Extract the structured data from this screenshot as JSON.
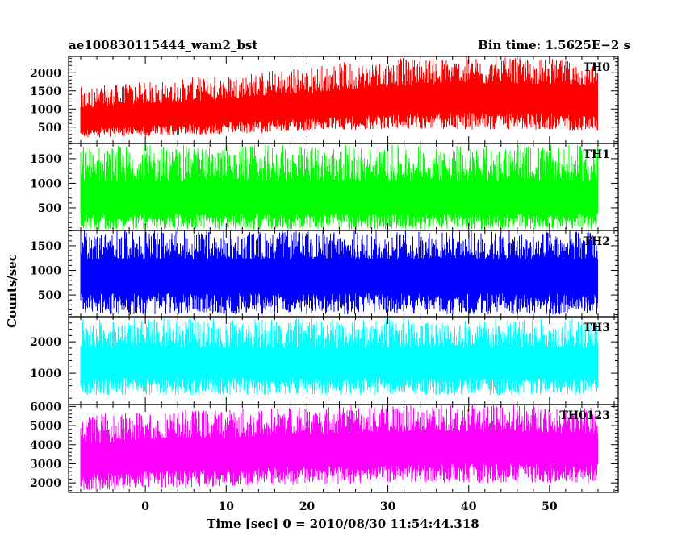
{
  "header": {
    "left_title": "ae100830115444_wam2_bst",
    "right_title": "Bin time: 1.5625E−2 s"
  },
  "chart_data": {
    "type": "line",
    "xlabel": "Time [sec] 0 = 2010/08/30 11:54:44.318",
    "ylabel": "Counts/sec",
    "xlim": [
      -9.5,
      58.5
    ],
    "x_ticks": [
      0,
      10,
      20,
      30,
      40,
      50
    ],
    "x_start": -8.0,
    "x_end": 56.0,
    "grid": false,
    "panels": [
      {
        "name": "TH0",
        "color": "#ff0000",
        "ylim": [
          50,
          2450
        ],
        "y_ticks": [
          500,
          1000,
          1500,
          2000
        ],
        "envelope": {
          "x": [
            -8,
            0,
            10,
            20,
            30,
            40,
            50,
            56
          ],
          "lower": [
            200,
            250,
            300,
            400,
            450,
            430,
            420,
            400
          ],
          "mean": [
            700,
            800,
            900,
            1000,
            1200,
            1300,
            1300,
            1250
          ],
          "upper": [
            1600,
            1750,
            1950,
            2200,
            2400,
            2450,
            2400,
            2300
          ]
        }
      },
      {
        "name": "TH1",
        "color": "#00ff00",
        "ylim": [
          40,
          1810
        ],
        "y_ticks": [
          500,
          1000,
          1500
        ],
        "envelope": {
          "x": [
            -8,
            56
          ],
          "lower": [
            60,
            60
          ],
          "mean": [
            650,
            650
          ],
          "upper": [
            1780,
            1780
          ]
        }
      },
      {
        "name": "TH2",
        "color": "#0000ff",
        "ylim": [
          60,
          1810
        ],
        "y_ticks": [
          500,
          1000,
          1500
        ],
        "envelope": {
          "x": [
            -8,
            56
          ],
          "lower": [
            100,
            100
          ],
          "mean": [
            900,
            900
          ],
          "upper": [
            1810,
            1810
          ]
        }
      },
      {
        "name": "TH3",
        "color": "#00ffff",
        "ylim": [
          0,
          2800
        ],
        "y_ticks": [
          1000,
          2000
        ],
        "envelope": {
          "x": [
            -8,
            56
          ],
          "lower": [
            300,
            300
          ],
          "mean": [
            1300,
            1300
          ],
          "upper": [
            2750,
            2750
          ]
        }
      },
      {
        "name": "TH0123",
        "color": "#ff00ff",
        "ylim": [
          1500,
          6100
        ],
        "y_ticks": [
          2000,
          3000,
          4000,
          5000,
          6000
        ],
        "envelope": {
          "x": [
            -8,
            0,
            10,
            20,
            30,
            40,
            50,
            56
          ],
          "lower": [
            1600,
            1700,
            1800,
            1900,
            2000,
            2000,
            2000,
            1950
          ],
          "mean": [
            3200,
            3400,
            3500,
            3700,
            3900,
            3900,
            3850,
            3800
          ],
          "upper": [
            5600,
            5800,
            5900,
            6100,
            6100,
            6100,
            6100,
            6000
          ]
        }
      }
    ]
  }
}
